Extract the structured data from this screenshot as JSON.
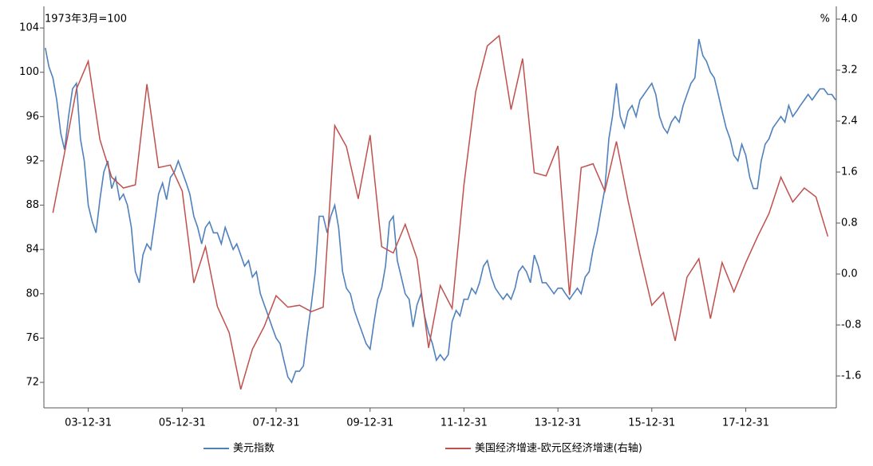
{
  "chart_data": {
    "type": "line",
    "left_unit": "1973年3月=100",
    "right_unit": "%",
    "xlim": [
      "03-01-20",
      "19-12-05"
    ],
    "xticks": [
      "03-12-31",
      "05-12-31",
      "07-12-31",
      "09-12-31",
      "11-12-31",
      "13-12-31",
      "15-12-31",
      "17-12-31"
    ],
    "ylim": [
      69.7,
      104.8
    ],
    "yticks": [
      72,
      76,
      80,
      84,
      88,
      92,
      96,
      100,
      104
    ],
    "y2lim": [
      -2.1,
      4.0
    ],
    "y2ticks": [
      -1.6,
      -0.8,
      {
        "value": 0,
        "label": "0.0"
      },
      0.8,
      1.6,
      2.4,
      3.2,
      {
        "value": 4,
        "label": "4.0"
      }
    ],
    "series": [
      {
        "name": "美元指数",
        "color": "#4f81bd",
        "x": [
          "03-01-31",
          "03-02-28",
          "03-03-31",
          "03-04-30",
          "03-05-31",
          "03-06-30",
          "03-07-31",
          "03-08-31",
          "03-09-30",
          "03-10-31",
          "03-11-30",
          "03-12-31",
          "04-01-31",
          "04-02-29",
          "04-03-31",
          "04-04-30",
          "04-05-31",
          "04-06-30",
          "04-07-31",
          "04-08-31",
          "04-09-30",
          "04-10-31",
          "04-11-30",
          "04-12-31",
          "05-01-31",
          "05-02-28",
          "05-03-31",
          "05-04-30",
          "05-05-31",
          "05-06-30",
          "05-07-31",
          "05-08-31",
          "05-09-30",
          "05-10-31",
          "05-11-30",
          "05-12-31",
          "06-01-31",
          "06-02-28",
          "06-03-31",
          "06-04-30",
          "06-05-31",
          "06-06-30",
          "06-07-31",
          "06-08-31",
          "06-09-30",
          "06-10-31",
          "06-11-30",
          "06-12-31",
          "07-01-31",
          "07-02-28",
          "07-03-31",
          "07-04-30",
          "07-05-31",
          "07-06-30",
          "07-07-31",
          "07-08-31",
          "07-09-30",
          "07-10-31",
          "07-11-30",
          "07-12-31",
          "08-01-31",
          "08-02-29",
          "08-03-31",
          "08-04-30",
          "08-05-31",
          "08-06-30",
          "08-07-31",
          "08-08-31",
          "08-09-30",
          "08-10-31",
          "08-11-30",
          "08-12-31",
          "09-01-31",
          "09-02-28",
          "09-03-31",
          "09-04-30",
          "09-05-31",
          "09-06-30",
          "09-07-31",
          "09-08-31",
          "09-09-30",
          "09-10-31",
          "09-11-30",
          "09-12-31",
          "10-01-31",
          "10-02-28",
          "10-03-31",
          "10-04-30",
          "10-05-31",
          "10-06-30",
          "10-07-31",
          "10-08-31",
          "10-09-30",
          "10-10-31",
          "10-11-30",
          "10-12-31",
          "11-01-31",
          "11-02-28",
          "11-03-31",
          "11-04-30",
          "11-05-31",
          "11-06-30",
          "11-07-31",
          "11-08-31",
          "11-09-30",
          "11-10-31",
          "11-11-30",
          "11-12-31",
          "12-01-31",
          "12-02-29",
          "12-03-31",
          "12-04-30",
          "12-05-31",
          "12-06-30",
          "12-07-31",
          "12-08-31",
          "12-09-30",
          "12-10-31",
          "12-11-30",
          "12-12-31",
          "13-01-31",
          "13-02-28",
          "13-03-31",
          "13-04-30",
          "13-05-31",
          "13-06-30",
          "13-07-31",
          "13-08-31",
          "13-09-30",
          "13-10-31",
          "13-11-30",
          "13-12-31",
          "14-01-31",
          "14-02-28",
          "14-03-31",
          "14-04-30",
          "14-05-31",
          "14-06-30",
          "14-07-31",
          "14-08-31",
          "14-09-30",
          "14-10-31",
          "14-11-30",
          "14-12-31",
          "15-01-31",
          "15-02-28",
          "15-03-31",
          "15-04-30",
          "15-05-31",
          "15-06-30",
          "15-07-31",
          "15-08-31",
          "15-09-30",
          "15-10-31",
          "15-11-30",
          "15-12-31",
          "16-01-31",
          "16-02-29",
          "16-03-31",
          "16-04-30",
          "16-05-31",
          "16-06-30",
          "16-07-31",
          "16-08-31",
          "16-09-30",
          "16-10-31",
          "16-11-30",
          "16-12-31",
          "17-01-31",
          "17-02-28",
          "17-03-31",
          "17-04-30",
          "17-05-31",
          "17-06-30",
          "17-07-31",
          "17-08-31",
          "17-09-30",
          "17-10-31",
          "17-11-30",
          "17-12-31",
          "18-01-31",
          "18-02-28",
          "18-03-31",
          "18-04-30",
          "18-05-31",
          "18-06-30",
          "18-07-31",
          "18-08-31",
          "18-09-30",
          "18-10-31",
          "18-11-30",
          "18-12-31",
          "19-01-31",
          "19-02-28",
          "19-03-31",
          "19-04-30",
          "19-05-31",
          "19-06-30",
          "19-07-31",
          "19-08-31",
          "19-09-30",
          "19-10-31",
          "19-11-30"
        ],
        "values": [
          102.2,
          100.5,
          99.5,
          97.5,
          94.5,
          93,
          96,
          98.5,
          99,
          94,
          92,
          88,
          86.5,
          85.5,
          88.5,
          91,
          92,
          89.5,
          90.5,
          88.5,
          89,
          88,
          86,
          82,
          81,
          83.5,
          84.5,
          84,
          86.5,
          89,
          90,
          88.5,
          90.5,
          91,
          92,
          91,
          90,
          89,
          87,
          86,
          84.5,
          86,
          86.5,
          85.5,
          85.5,
          84.5,
          86,
          85,
          84,
          84.5,
          83.5,
          82.5,
          83,
          81.5,
          82,
          80,
          79,
          78,
          77,
          76,
          75.5,
          74,
          72.5,
          72,
          73,
          73,
          73.5,
          76.5,
          79,
          82,
          87,
          87,
          85.5,
          87,
          88,
          86,
          82,
          80.5,
          80,
          78.5,
          77.5,
          76.5,
          75.5,
          75,
          77.5,
          79.5,
          80.5,
          82.5,
          86.5,
          87,
          83,
          81.5,
          80,
          79.5,
          77,
          79,
          80,
          78,
          76.5,
          75.5,
          74,
          74.5,
          74,
          74.5,
          77.5,
          78.5,
          78,
          79.5,
          79.5,
          80.5,
          80,
          81,
          82.5,
          83,
          81.5,
          80.5,
          80,
          79.5,
          80,
          79.5,
          80.5,
          82,
          82.5,
          82,
          81,
          83.5,
          82.5,
          81,
          81,
          80.5,
          80,
          80.5,
          80.5,
          80,
          79.5,
          80,
          80.5,
          80,
          81.5,
          82,
          84,
          85.5,
          87.5,
          89.5,
          94,
          96,
          99,
          96,
          95,
          96.5,
          97,
          96,
          97.5,
          98,
          98.5,
          99,
          98,
          96,
          95,
          94.5,
          95.5,
          96,
          95.5,
          97,
          98,
          99,
          99.5,
          103,
          101.5,
          101,
          100,
          99.5,
          98,
          96.5,
          95,
          94,
          92.5,
          92,
          93.5,
          92.5,
          90.5,
          89.5,
          89.5,
          92,
          93.5,
          94,
          95,
          95.5,
          96,
          95.5,
          97,
          96,
          96.5,
          97,
          97.5,
          98,
          97.5,
          98,
          98.5,
          98.5,
          98,
          98,
          97.5
        ]
      },
      {
        "name": "美国经济增速-欧元区经济增速(右轴)",
        "color": "#c0504d",
        "axis": "y2",
        "x": [
          "03-03-31",
          "03-06-30",
          "03-09-30",
          "03-12-31",
          "04-03-31",
          "04-06-30",
          "04-09-30",
          "04-12-31",
          "05-03-31",
          "05-06-30",
          "05-09-30",
          "05-12-31",
          "06-03-31",
          "06-06-30",
          "06-09-30",
          "06-12-31",
          "07-03-31",
          "07-06-30",
          "07-09-30",
          "07-12-31",
          "08-03-31",
          "08-06-30",
          "08-09-30",
          "08-12-31",
          "09-03-31",
          "09-06-30",
          "09-09-30",
          "09-12-31",
          "10-03-31",
          "10-06-30",
          "10-09-30",
          "10-12-31",
          "11-03-31",
          "11-06-30",
          "11-09-30",
          "11-12-31",
          "12-03-31",
          "12-06-30",
          "12-09-30",
          "12-12-31",
          "13-03-31",
          "13-06-30",
          "13-09-30",
          "13-12-31",
          "14-03-31",
          "14-06-30",
          "14-09-30",
          "14-12-31",
          "15-03-31",
          "15-06-30",
          "15-09-30",
          "15-12-31",
          "16-03-31",
          "16-06-30",
          "16-09-30",
          "16-12-31",
          "17-03-31",
          "17-06-30",
          "17-09-30",
          "17-12-31",
          "18-03-31",
          "18-06-30",
          "18-09-30",
          "18-12-31",
          "19-03-31",
          "19-06-30",
          "19-09-30"
        ],
        "values": [
          0.96,
          1.9,
          2.9,
          3.34,
          2.11,
          1.52,
          1.35,
          1.4,
          2.98,
          1.67,
          1.71,
          1.3,
          -0.14,
          0.43,
          -0.51,
          -0.92,
          -1.81,
          -1.18,
          -0.82,
          -0.34,
          -0.52,
          -0.49,
          -0.59,
          -0.52,
          2.33,
          2.0,
          1.18,
          2.18,
          0.43,
          0.33,
          0.78,
          0.24,
          -1.16,
          -0.18,
          -0.54,
          1.4,
          2.86,
          3.58,
          3.74,
          2.58,
          3.38,
          1.59,
          1.54,
          2.01,
          -0.33,
          1.67,
          1.73,
          1.3,
          2.08,
          1.15,
          0.3,
          -0.49,
          -0.29,
          -1.05,
          -0.05,
          0.24,
          -0.7,
          0.18,
          -0.28,
          0.18,
          0.58,
          0.95,
          1.52,
          1.13,
          1.35,
          1.21,
          0.59
        ]
      }
    ]
  }
}
